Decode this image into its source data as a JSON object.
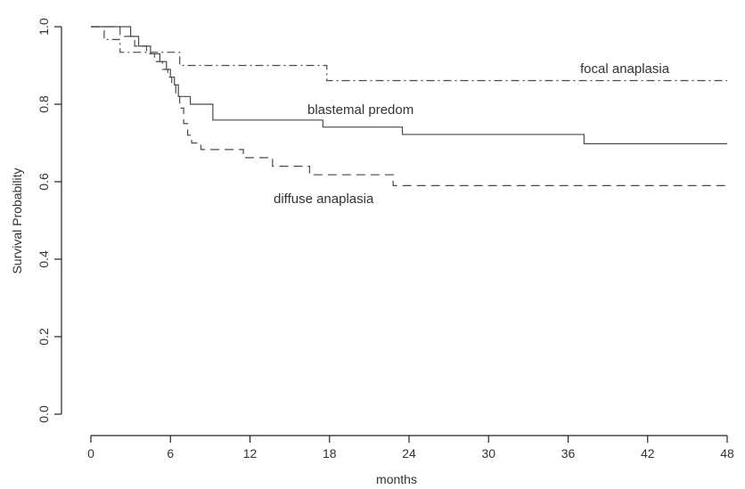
{
  "chart_data": {
    "type": "line",
    "xlabel": "months",
    "ylabel": "Survival Probability",
    "x_ticks": [
      0,
      6,
      12,
      18,
      24,
      30,
      36,
      42,
      48
    ],
    "y_ticks": [
      0.0,
      0.2,
      0.4,
      0.6,
      0.8,
      1.0
    ],
    "y_tick_labels": [
      "0.0",
      "0.2",
      "0.4",
      "0.6",
      "0.8",
      "1.0"
    ],
    "xlim": [
      0,
      48
    ],
    "ylim": [
      0,
      1.0
    ],
    "grid": false,
    "legend": "none",
    "series": [
      {
        "name": "focal anaplasia",
        "style": "dashdot",
        "color": "#4a4a4a",
        "steps": [
          [
            0,
            1.0
          ],
          [
            1,
            0.967
          ],
          [
            2.2,
            0.934
          ],
          [
            6.7,
            0.9
          ],
          [
            17.8,
            0.861
          ],
          [
            48,
            0.861
          ]
        ]
      },
      {
        "name": "blastemal predom",
        "style": "solid",
        "color": "#4a4a4a",
        "steps": [
          [
            0,
            1.0
          ],
          [
            3,
            0.975
          ],
          [
            3.6,
            0.95
          ],
          [
            4.5,
            0.93
          ],
          [
            5.2,
            0.91
          ],
          [
            5.7,
            0.89
          ],
          [
            6.0,
            0.87
          ],
          [
            6.3,
            0.85
          ],
          [
            6.6,
            0.82
          ],
          [
            7.5,
            0.8
          ],
          [
            9.2,
            0.759
          ],
          [
            17.5,
            0.741
          ],
          [
            23.5,
            0.722
          ],
          [
            37.2,
            0.698
          ],
          [
            48,
            0.698
          ]
        ]
      },
      {
        "name": "diffuse anaplasia",
        "style": "dashed",
        "color": "#4a4a4a",
        "steps": [
          [
            0,
            1.0
          ],
          [
            2.2,
            0.975
          ],
          [
            3.3,
            0.95
          ],
          [
            4.2,
            0.93
          ],
          [
            4.8,
            0.91
          ],
          [
            5.4,
            0.89
          ],
          [
            5.8,
            0.87
          ],
          [
            6.1,
            0.85
          ],
          [
            6.4,
            0.82
          ],
          [
            6.7,
            0.79
          ],
          [
            7.0,
            0.75
          ],
          [
            7.3,
            0.72
          ],
          [
            7.6,
            0.7
          ],
          [
            8.3,
            0.683
          ],
          [
            11.5,
            0.662
          ],
          [
            13.7,
            0.64
          ],
          [
            16.5,
            0.618
          ],
          [
            22.8,
            0.59
          ],
          [
            48,
            0.59
          ]
        ]
      }
    ],
    "annotations": [
      {
        "text": "focal anaplasia",
        "series": 0
      },
      {
        "text": "blastemal predom",
        "series": 1
      },
      {
        "text": "diffuse anaplasia",
        "series": 2
      }
    ]
  }
}
